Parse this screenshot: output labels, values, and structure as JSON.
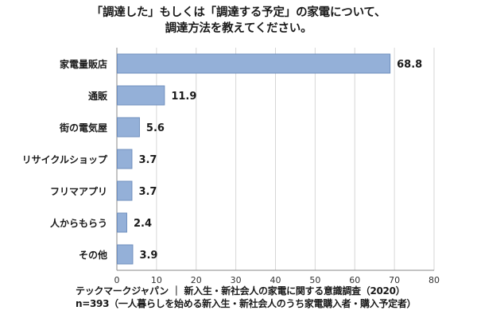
{
  "chart_data": {
    "type": "bar",
    "orientation": "horizontal",
    "title_lines": [
      "「調達した」もしくは「調達する予定」の家電について、",
      "調達方法を教えてください。"
    ],
    "categories": [
      "家電量販店",
      "通販",
      "街の電気屋",
      "リサイクルショップ",
      "フリマアプリ",
      "人からもらう",
      "その他"
    ],
    "values": [
      68.8,
      11.9,
      5.6,
      3.7,
      3.7,
      2.4,
      3.9
    ],
    "value_labels": [
      "68.8",
      "11.9",
      "5.6",
      "3.7",
      "3.7",
      "2.4",
      "3.9"
    ],
    "x_ticks": [
      0,
      10,
      20,
      30,
      40,
      50,
      60,
      70,
      80
    ],
    "xlim": [
      0,
      80
    ],
    "grid": true,
    "bar_color": "#94b0d8",
    "bar_border_color": "#6f8fbe",
    "grid_color": "#d6d6d6"
  },
  "footer": {
    "line1": "テックマークジャパン ｜ 新入生・新社会人の家電に関する意識調査（2020）",
    "line2": "n=393（一人暮らしを始める新入生・新社会人のうち家電購入者・購入予定者）"
  }
}
